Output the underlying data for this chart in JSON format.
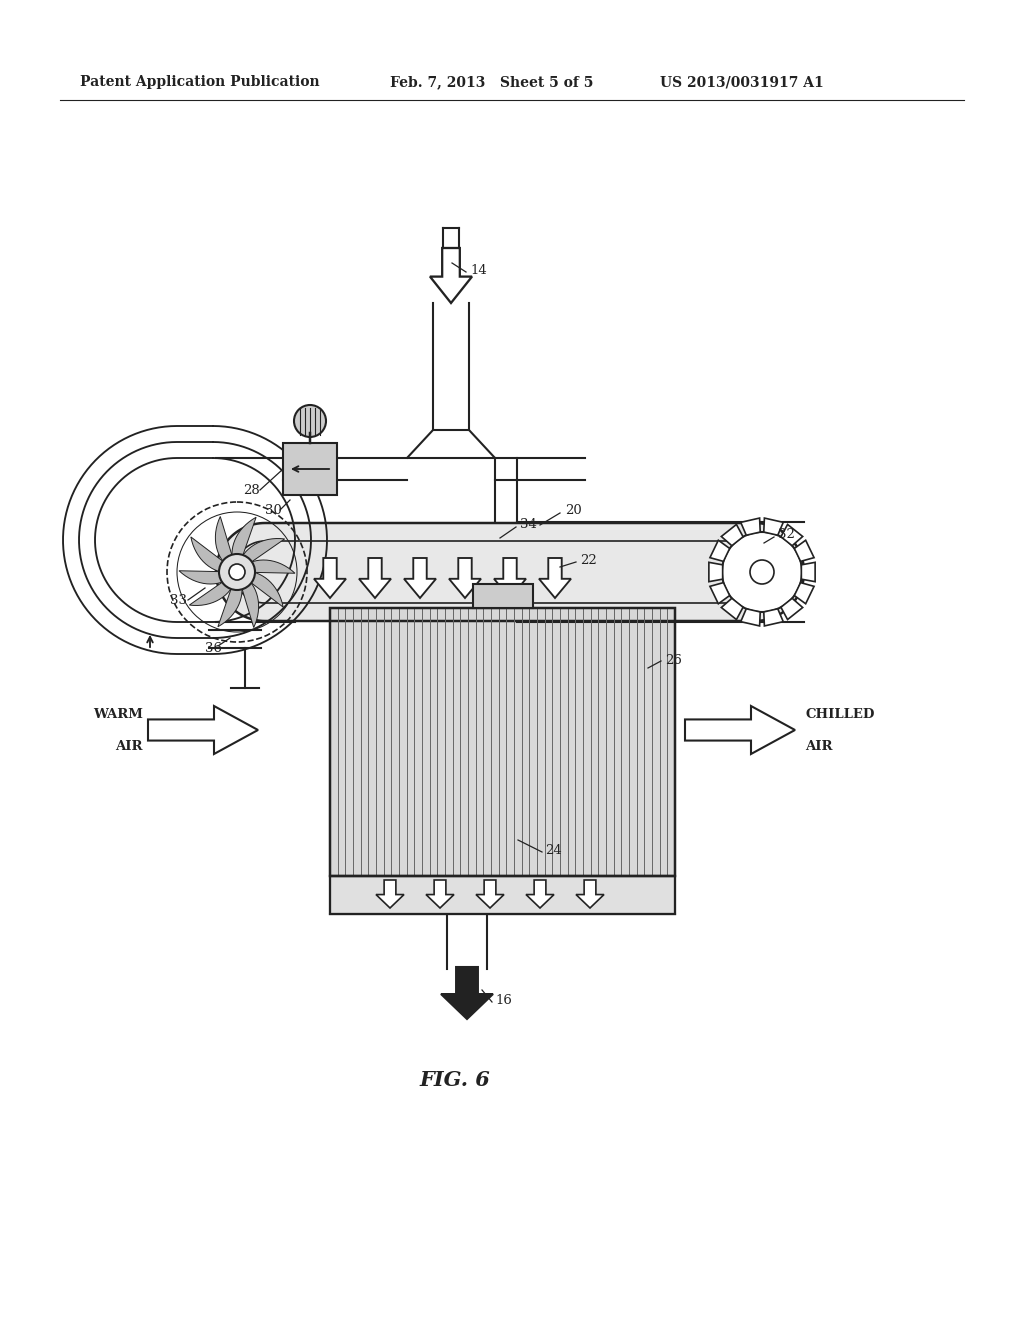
{
  "header_left": "Patent Application Publication",
  "header_mid": "Feb. 7, 2013   Sheet 5 of 5",
  "header_right": "US 2013/0031917 A1",
  "fig_label": "FIG. 6",
  "background_color": "#ffffff",
  "line_color": "#222222",
  "lw": 1.5
}
